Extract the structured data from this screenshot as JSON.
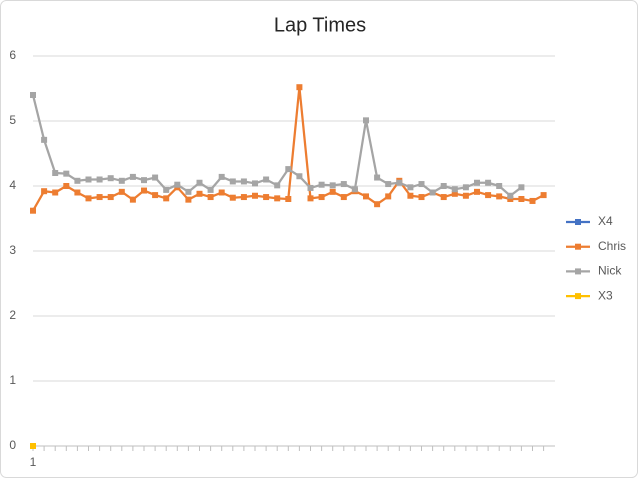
{
  "chart_data": {
    "type": "line",
    "title": "Lap Times",
    "categories": [
      "1",
      null,
      null,
      null,
      null,
      null,
      null,
      null,
      null,
      null,
      null,
      null,
      null,
      null,
      null,
      null,
      null,
      null,
      null,
      null,
      null,
      null,
      null,
      null,
      null,
      null,
      null,
      null,
      null,
      null,
      null,
      null,
      null,
      null,
      null,
      null,
      null,
      null,
      null,
      null,
      null,
      null,
      null,
      null,
      null,
      null,
      null
    ],
    "ylim": [
      0,
      6
    ],
    "yticks": [
      0,
      1,
      2,
      3,
      4,
      5,
      6
    ],
    "grid": true,
    "legend": "right",
    "series": [
      {
        "name": "X4",
        "color": "#4472c4",
        "values": [
          0,
          null,
          null,
          null,
          null,
          null,
          null,
          null,
          null,
          null,
          null,
          null,
          null,
          null,
          null,
          null,
          null,
          null,
          null,
          null,
          null,
          null,
          null,
          null,
          null,
          null,
          null,
          null,
          null,
          null,
          null,
          null,
          null,
          null,
          null,
          null,
          null,
          null,
          null,
          null,
          null,
          null,
          null,
          null,
          null,
          null,
          null
        ]
      },
      {
        "name": "Chris",
        "color": "#ed7d31",
        "values": [
          3.62,
          3.92,
          3.9,
          4.0,
          3.9,
          3.81,
          3.83,
          3.83,
          3.91,
          3.79,
          3.93,
          3.86,
          3.81,
          3.98,
          3.79,
          3.88,
          3.83,
          3.9,
          3.82,
          3.83,
          3.85,
          3.83,
          3.81,
          3.8,
          5.52,
          3.81,
          3.83,
          3.91,
          3.83,
          3.92,
          3.84,
          3.72,
          3.84,
          4.08,
          3.85,
          3.83,
          3.9,
          3.83,
          3.88,
          3.85,
          3.91,
          3.86,
          3.84,
          3.8,
          3.8,
          3.77,
          3.86
        ]
      },
      {
        "name": "Nick",
        "color": "#a5a5a5",
        "values": [
          5.4,
          4.71,
          4.2,
          4.19,
          4.08,
          4.1,
          4.1,
          4.12,
          4.08,
          4.14,
          4.09,
          4.13,
          3.94,
          4.02,
          3.91,
          4.05,
          3.94,
          4.14,
          4.07,
          4.07,
          4.04,
          4.1,
          4.01,
          4.26,
          4.15,
          3.97,
          4.02,
          4.01,
          4.03,
          3.95,
          5.01,
          4.13,
          4.03,
          4.05,
          3.98,
          4.03,
          3.9,
          4.0,
          3.95,
          3.98,
          4.05,
          4.05,
          4.0,
          3.85,
          3.98,
          null,
          null
        ]
      },
      {
        "name": "X3",
        "color": "#ffc000",
        "values": [
          0,
          null,
          null,
          null,
          null,
          null,
          null,
          null,
          null,
          null,
          null,
          null,
          null,
          null,
          null,
          null,
          null,
          null,
          null,
          null,
          null,
          null,
          null,
          null,
          null,
          null,
          null,
          null,
          null,
          null,
          null,
          null,
          null,
          null,
          null,
          null,
          null,
          null,
          null,
          null,
          null,
          null,
          null,
          null,
          null,
          null,
          null
        ]
      }
    ]
  }
}
